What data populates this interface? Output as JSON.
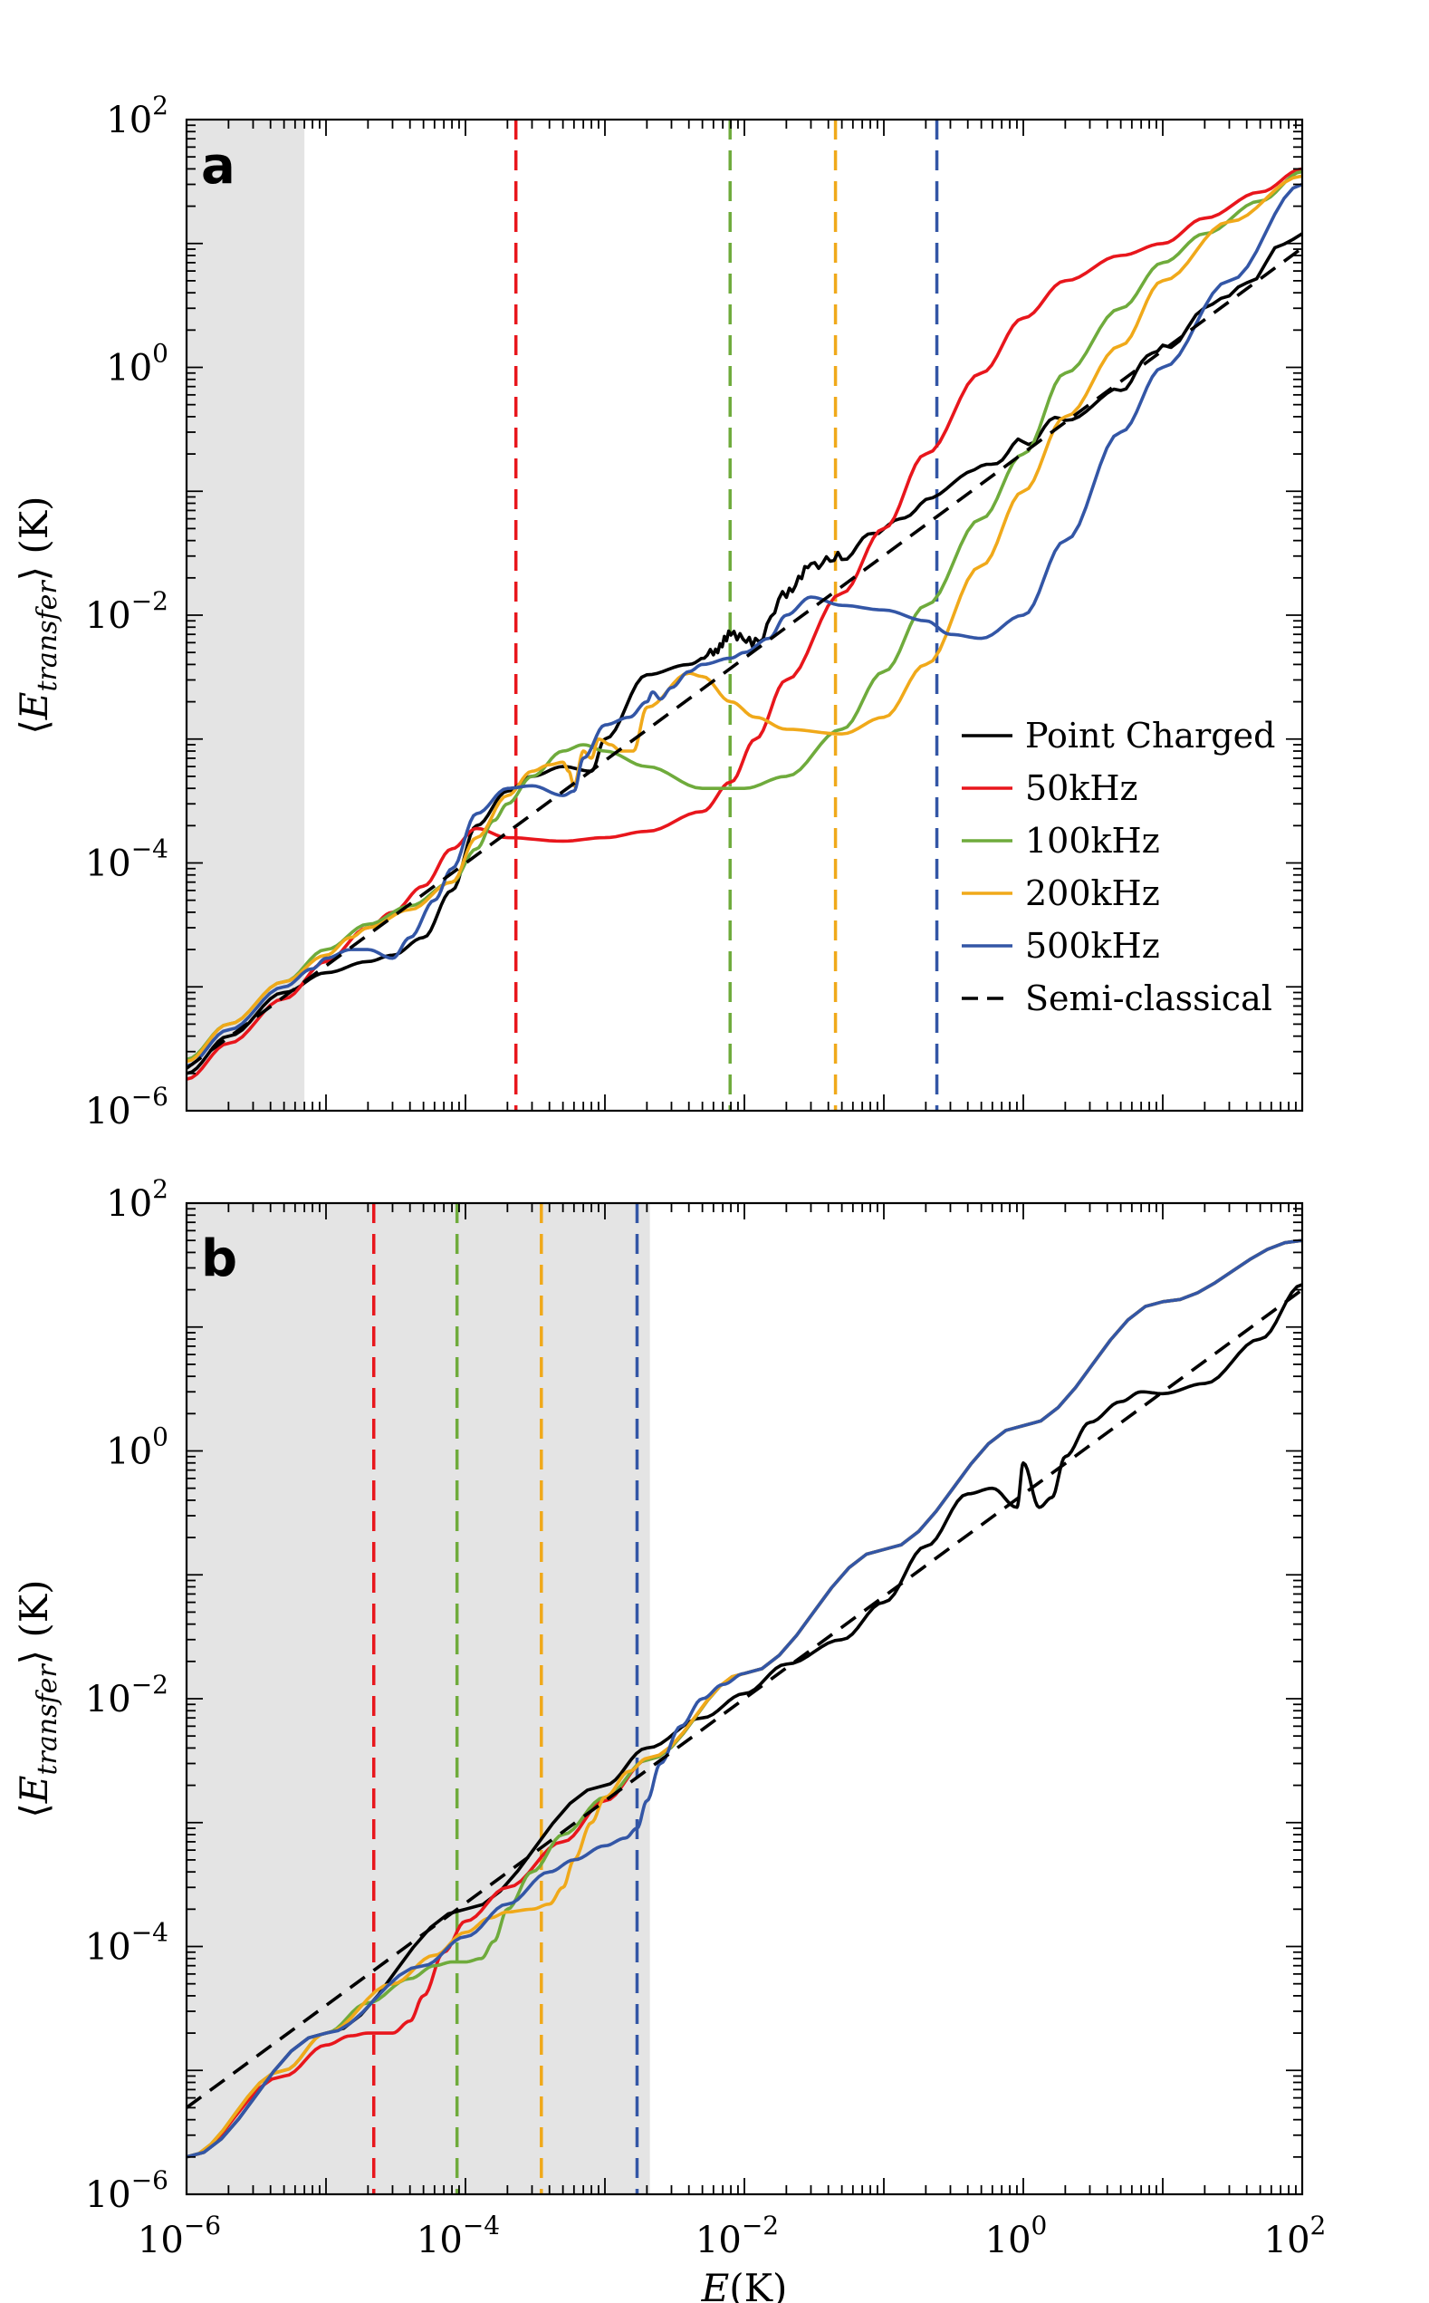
{
  "chart_data": [
    {
      "panel": "a",
      "type": "line",
      "xscale": "log",
      "yscale": "log",
      "xlim": [
        1e-06,
        100
      ],
      "ylim": [
        1e-06,
        100
      ],
      "xlabel": "",
      "ylabel": "⟨E_transfer⟩ (K)",
      "x_ticks": [
        "",
        "",
        "",
        "",
        ""
      ],
      "y_ticks": [
        "10^-6",
        "10^-4",
        "10^-2",
        "10^0",
        "10^2"
      ],
      "shaded_region": {
        "x": [
          1e-06,
          7e-06
        ],
        "color": "#e4e4e4"
      },
      "vlines": [
        {
          "x": 0.00023,
          "color": "#e8161c"
        },
        {
          "x": 0.0079,
          "color": "#6fab3c"
        },
        {
          "x": 0.045,
          "color": "#f0a91a"
        },
        {
          "x": 0.24,
          "color": "#3356a6"
        }
      ],
      "legend_position": "lower-right",
      "series": [
        {
          "name": "Point Charged",
          "color": "#000000",
          "dash": "solid",
          "noisy": true,
          "x": [
            1e-06,
            2e-06,
            5e-06,
            1e-05,
            2e-05,
            3e-05,
            5e-05,
            8e-05,
            0.00012,
            0.0002,
            0.0003,
            0.0005,
            0.0008,
            0.001,
            0.002,
            0.004,
            0.006,
            0.008,
            0.012,
            0.02,
            0.03,
            0.05,
            0.1,
            0.2,
            0.5,
            1,
            2,
            5,
            10,
            30,
            100
          ],
          "y": [
            2e-06,
            4e-06,
            9e-06,
            1.3e-05,
            1.6e-05,
            1.8e-05,
            2.5e-05,
            6e-05,
            0.0002,
            0.00038,
            0.0005,
            0.0006,
            0.00055,
            0.001,
            0.0033,
            0.004,
            0.005,
            0.007,
            0.006,
            0.015,
            0.025,
            0.03,
            0.05,
            0.08,
            0.15,
            0.25,
            0.4,
            0.7,
            1.5,
            4,
            12
          ]
        },
        {
          "name": "50kHz",
          "color": "#e8161c",
          "dash": "solid",
          "x": [
            1e-06,
            2e-06,
            5e-06,
            1e-05,
            2e-05,
            3e-05,
            5e-05,
            8e-05,
            0.00012,
            0.0002,
            0.0005,
            0.001,
            0.002,
            0.005,
            0.008,
            0.012,
            0.02,
            0.05,
            0.1,
            0.2,
            0.5,
            1,
            2,
            5,
            10,
            20,
            50,
            100
          ],
          "y": [
            1.8e-06,
            3.5e-06,
            8e-06,
            1.6e-05,
            3e-05,
            4e-05,
            6.5e-05,
            0.00013,
            0.00019,
            0.00016,
            0.00015,
            0.00016,
            0.00018,
            0.00026,
            0.00045,
            0.001,
            0.003,
            0.015,
            0.05,
            0.2,
            0.9,
            2.5,
            5,
            8,
            10,
            16,
            26,
            40
          ]
        },
        {
          "name": "100kHz",
          "color": "#6fab3c",
          "dash": "solid",
          "x": [
            1e-06,
            2e-06,
            5e-06,
            1e-05,
            2e-05,
            4e-05,
            8e-05,
            0.00012,
            0.00016,
            0.0002,
            0.0003,
            0.0005,
            0.0007,
            0.001,
            0.002,
            0.005,
            0.01,
            0.02,
            0.05,
            0.1,
            0.2,
            0.5,
            1,
            2,
            5,
            10,
            20,
            50,
            100
          ],
          "y": [
            2.6e-06,
            5e-06,
            1.1e-05,
            2e-05,
            3.2e-05,
            4.5e-05,
            7e-05,
            0.00013,
            0.00022,
            0.0003,
            0.0005,
            0.0008,
            0.0009,
            0.0008,
            0.0006,
            0.0004,
            0.0004,
            0.0005,
            0.0012,
            0.0035,
            0.012,
            0.06,
            0.2,
            0.9,
            3,
            7,
            12,
            22,
            38
          ]
        },
        {
          "name": "200kHz",
          "color": "#f0a91a",
          "dash": "solid",
          "x": [
            1e-06,
            2e-06,
            5e-06,
            1e-05,
            1.5e-05,
            2e-05,
            4e-05,
            8e-05,
            0.00012,
            0.0002,
            0.0003,
            0.0004,
            0.0005,
            0.00055,
            0.0006,
            0.0007,
            0.0008,
            0.0009,
            0.0011,
            0.0013,
            0.0016,
            0.002,
            0.004,
            0.005,
            0.008,
            0.012,
            0.02,
            0.05,
            0.1,
            0.2,
            0.5,
            1,
            2,
            5,
            10,
            30,
            100
          ],
          "y": [
            2.5e-06,
            5e-06,
            1.1e-05,
            1.8e-05,
            2.5e-05,
            3e-05,
            4.2e-05,
            7e-05,
            0.00016,
            0.00035,
            0.00055,
            0.00062,
            0.00065,
            0.00055,
            0.00042,
            0.0008,
            0.0007,
            0.001,
            0.0009,
            0.0008,
            0.0008,
            0.0018,
            0.0034,
            0.0032,
            0.002,
            0.0015,
            0.0012,
            0.0011,
            0.0015,
            0.004,
            0.025,
            0.1,
            0.4,
            1.5,
            5,
            15,
            35
          ]
        },
        {
          "name": "500kHz",
          "color": "#3356a6",
          "dash": "solid",
          "x": [
            1e-06,
            2e-06,
            5e-06,
            8e-06,
            1e-05,
            1.5e-05,
            2e-05,
            3e-05,
            4e-05,
            6e-05,
            8e-05,
            0.00012,
            0.0002,
            0.0003,
            0.0005,
            0.0006,
            0.0007,
            0.001,
            0.0015,
            0.002,
            0.0022,
            0.0025,
            0.003,
            0.004,
            0.005,
            0.008,
            0.01,
            0.015,
            0.02,
            0.03,
            0.05,
            0.1,
            0.2,
            0.3,
            0.5,
            1,
            2,
            5,
            10,
            30,
            100
          ],
          "y": [
            2.3e-06,
            4.5e-06,
            1e-05,
            1.4e-05,
            1.7e-05,
            2e-05,
            2e-05,
            1.7e-05,
            2.5e-05,
            5e-05,
            9e-05,
            0.00025,
            0.0004,
            0.00042,
            0.00035,
            0.00038,
            0.0007,
            0.0013,
            0.0015,
            0.002,
            0.0024,
            0.0021,
            0.0026,
            0.0035,
            0.004,
            0.0045,
            0.005,
            0.0065,
            0.01,
            0.014,
            0.012,
            0.011,
            0.009,
            0.007,
            0.0065,
            0.01,
            0.04,
            0.3,
            1,
            5,
            30
          ]
        },
        {
          "name": "Semi-classical",
          "color": "#000000",
          "dash": "dashed",
          "x": [
            1e-06,
            100
          ],
          "y": [
            2.2e-06,
            9.2
          ]
        }
      ]
    },
    {
      "panel": "b",
      "type": "line",
      "xscale": "log",
      "yscale": "log",
      "xlim": [
        1e-06,
        100
      ],
      "ylim": [
        1e-06,
        100
      ],
      "xlabel": "E(K)",
      "ylabel": "⟨E_transfer⟩ (K)",
      "x_ticks": [
        "10^-6",
        "10^-4",
        "10^-2",
        "10^0",
        "10^2"
      ],
      "y_ticks": [
        "10^-6",
        "10^-4",
        "10^-2",
        "10^0",
        "10^2"
      ],
      "shaded_region": {
        "x": [
          1e-06,
          0.0021
        ],
        "color": "#e4e4e4"
      },
      "vlines": [
        {
          "x": 2.2e-05,
          "color": "#e8161c"
        },
        {
          "x": 8.7e-05,
          "color": "#6fab3c"
        },
        {
          "x": 0.00035,
          "color": "#f0a91a"
        },
        {
          "x": 0.0017,
          "color": "#3356a6"
        }
      ],
      "series": [
        {
          "name": "Point Charged",
          "color": "#000000",
          "dash": "solid",
          "x": [
            1e-06,
            1e-05,
            0.0001,
            0.001,
            0.002,
            0.005,
            0.01,
            0.02,
            0.05,
            0.1,
            0.2,
            0.4,
            0.6,
            0.9,
            1,
            1.3,
            1.6,
            2,
            3,
            5,
            7,
            10,
            20,
            50,
            100
          ],
          "y": [
            2e-06,
            2e-05,
            0.0002,
            0.002,
            0.004,
            0.007,
            0.011,
            0.019,
            0.03,
            0.06,
            0.17,
            0.45,
            0.5,
            0.35,
            0.8,
            0.35,
            0.42,
            0.9,
            1.7,
            2.5,
            3,
            2.9,
            3.5,
            8,
            22
          ]
        },
        {
          "name": "50kHz",
          "color": "#e8161c",
          "dash": "solid",
          "x": [
            1e-06,
            5e-06,
            1e-05,
            1.5e-05,
            2e-05,
            2.5e-05,
            3e-05,
            4e-05,
            5e-05,
            7e-05,
            0.0001,
            0.0002,
            0.0005,
            0.001,
            0.002,
            0.01,
            0.1,
            1,
            10,
            100
          ],
          "y": [
            2e-06,
            9e-06,
            1.6e-05,
            1.9e-05,
            2e-05,
            2e-05,
            2e-05,
            2.5e-05,
            4e-05,
            9e-05,
            0.00016,
            0.0003,
            0.0007,
            0.0015,
            0.0032,
            0.016,
            0.16,
            1.6,
            16,
            50
          ]
        },
        {
          "name": "100kHz",
          "color": "#6fab3c",
          "dash": "solid",
          "x": [
            1e-06,
            5e-06,
            1e-05,
            2e-05,
            4e-05,
            6e-05,
            8e-05,
            0.0001,
            0.00013,
            0.00016,
            0.0002,
            0.0003,
            0.0005,
            0.001,
            0.002,
            0.01,
            0.1,
            1,
            10,
            100
          ],
          "y": [
            2e-06,
            1e-05,
            2e-05,
            3.5e-05,
            5.5e-05,
            7e-05,
            7.5e-05,
            7.5e-05,
            8e-05,
            0.00011,
            0.0002,
            0.0004,
            0.0008,
            0.0016,
            0.0032,
            0.016,
            0.16,
            1.6,
            16,
            50
          ]
        },
        {
          "name": "200kHz",
          "color": "#f0a91a",
          "dash": "solid",
          "x": [
            1e-06,
            5e-06,
            1e-05,
            3e-05,
            6e-05,
            0.0001,
            0.00015,
            0.0002,
            0.0003,
            0.0004,
            0.0005,
            0.0006,
            0.0008,
            0.001,
            0.0015,
            0.002,
            0.01,
            0.1,
            1,
            10,
            100
          ],
          "y": [
            2e-06,
            1e-05,
            2e-05,
            5e-05,
            8.5e-05,
            0.00013,
            0.00017,
            0.00019,
            0.0002,
            0.00022,
            0.0003,
            0.0005,
            0.001,
            0.0016,
            0.0026,
            0.0033,
            0.016,
            0.16,
            1.6,
            16,
            50
          ]
        },
        {
          "name": "500kHz",
          "color": "#3356a6",
          "dash": "solid",
          "x": [
            1e-06,
            1e-05,
            5e-05,
            0.0001,
            0.0002,
            0.0004,
            0.0006,
            0.001,
            0.0014,
            0.0017,
            0.002,
            0.0025,
            0.0035,
            0.005,
            0.007,
            0.01,
            0.1,
            1,
            10,
            100
          ],
          "y": [
            2e-06,
            2e-05,
            7e-05,
            0.00012,
            0.00022,
            0.0004,
            0.0005,
            0.00065,
            0.00075,
            0.0009,
            0.0015,
            0.003,
            0.006,
            0.01,
            0.013,
            0.016,
            0.16,
            1.6,
            16,
            50
          ]
        },
        {
          "name": "Semi-classical",
          "color": "#000000",
          "dash": "dashed",
          "x": [
            1e-06,
            100
          ],
          "y": [
            5e-06,
            20
          ]
        }
      ]
    }
  ],
  "panels": {
    "a": {
      "letter": "a"
    },
    "b": {
      "letter": "b"
    }
  },
  "legend": [
    {
      "label": "Point Charged",
      "color": "#000000",
      "dash": "solid"
    },
    {
      "label": "50kHz",
      "color": "#e8161c",
      "dash": "solid"
    },
    {
      "label": "100kHz",
      "color": "#6fab3c",
      "dash": "solid"
    },
    {
      "label": "200kHz",
      "color": "#f0a91a",
      "dash": "solid"
    },
    {
      "label": "500kHz",
      "color": "#3356a6",
      "dash": "solid"
    },
    {
      "label": "Semi-classical",
      "color": "#000000",
      "dash": "dashed"
    }
  ],
  "tick_labels": {
    "mantissa": "10",
    "exponents": [
      "−6",
      "−4",
      "−2",
      "0",
      "2"
    ]
  },
  "axis_labels": {
    "ylabel_open": "⟨",
    "ylabel_E": "E",
    "ylabel_sub": "transfer",
    "ylabel_close": "⟩",
    "ylabel_unit": "(K)",
    "xlabel_E": "E",
    "xlabel_unit": "(K)"
  }
}
